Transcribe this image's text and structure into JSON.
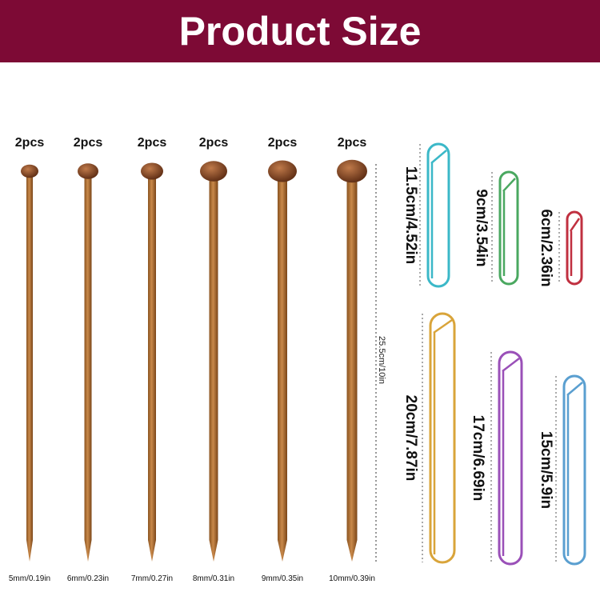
{
  "header": {
    "title": "Product Size"
  },
  "needles": [
    {
      "quantity": "2pcs",
      "size": "5mm/0.19in"
    },
    {
      "quantity": "2pcs",
      "size": "6mm/0.23in"
    },
    {
      "quantity": "2pcs",
      "size": "7mm/0.27in"
    },
    {
      "quantity": "2pcs",
      "size": "8mm/0.31in"
    },
    {
      "quantity": "2pcs",
      "size": "9mm/0.35in"
    },
    {
      "quantity": "2pcs",
      "size": "10mm/0.39in"
    }
  ],
  "needle_length": "25.5cm/10in",
  "stitch_holders": [
    {
      "label": "11.5cm/4.52in"
    },
    {
      "label": "9cm/3.54in"
    },
    {
      "label": "6cm/2.36in"
    },
    {
      "label": "20cm/7.87in"
    },
    {
      "label": "17cm/6.69in"
    },
    {
      "label": "15cm/5.9in"
    }
  ]
}
